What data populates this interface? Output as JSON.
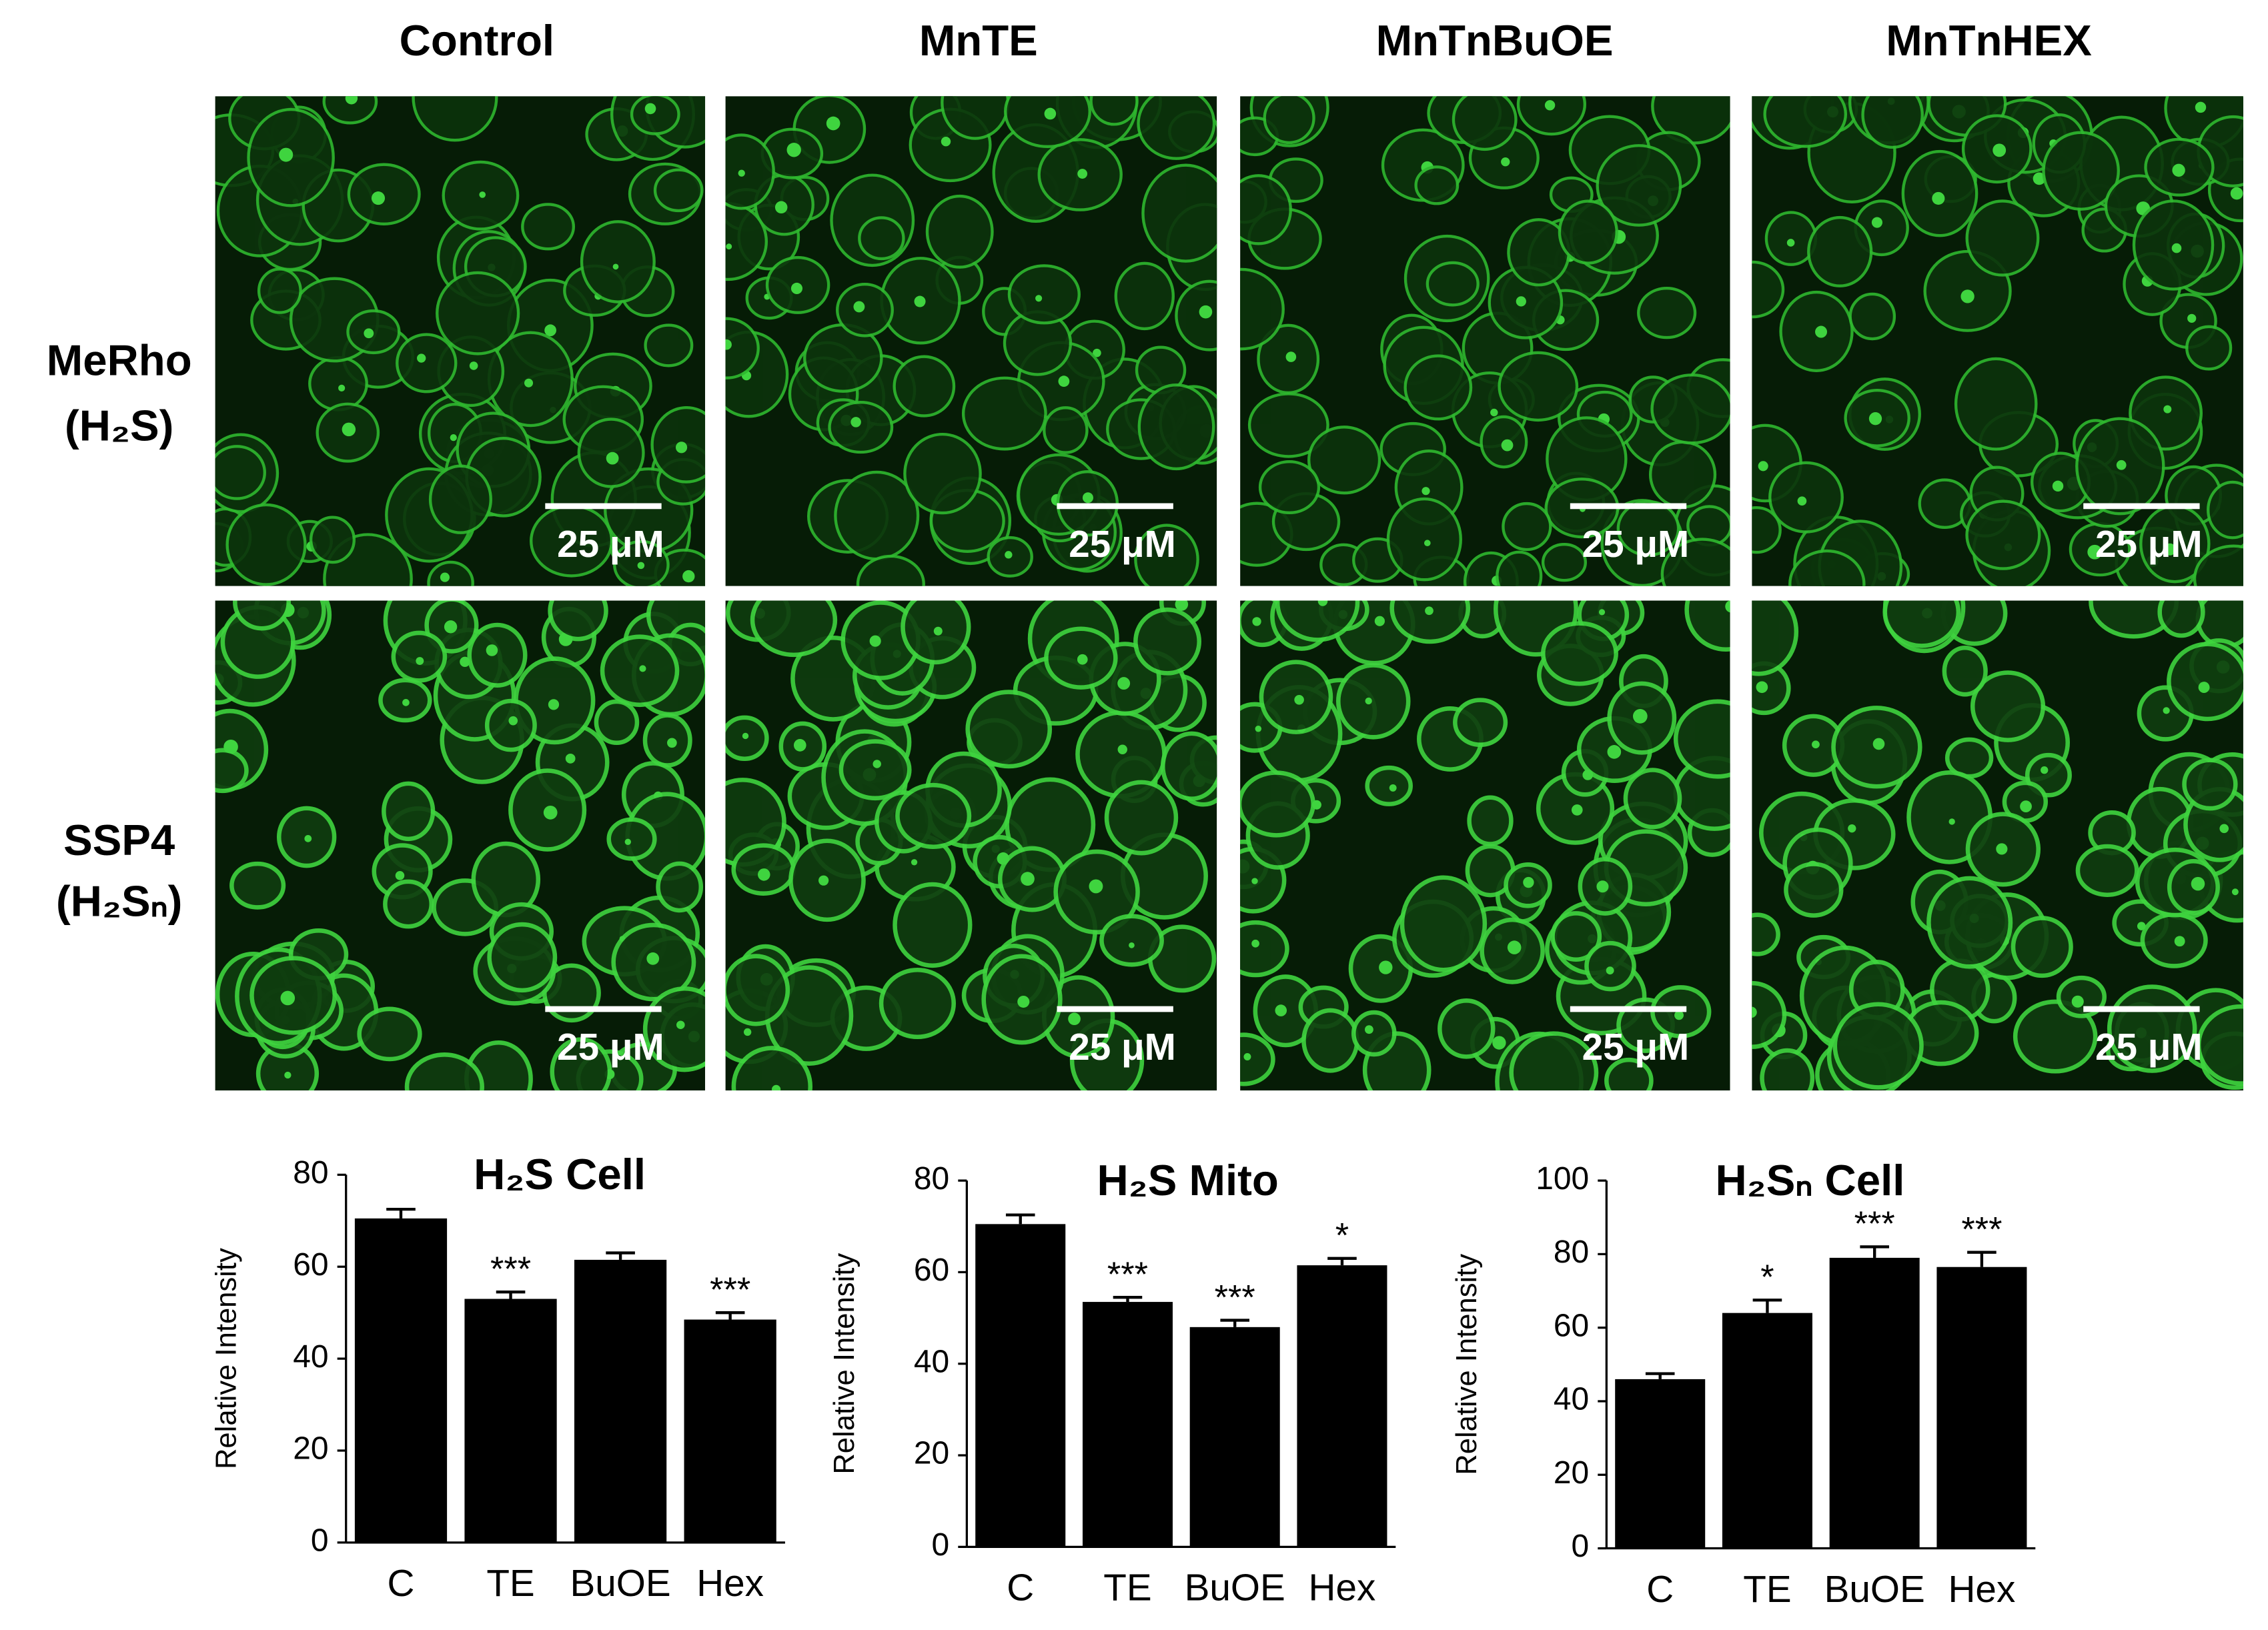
{
  "column_headers": [
    "Control",
    "MnTE",
    "MnTnBuOE",
    "MnTnHEX"
  ],
  "rows": [
    {
      "label": [
        "MeRho",
        "(H₂S)"
      ],
      "scale_bars": [
        "25 μM",
        "25 μM",
        "25 μM",
        "25 μM"
      ]
    },
    {
      "label": [
        "SSP4",
        "(H₂Sₙ)"
      ],
      "scale_bars": [
        "25 μM",
        "25 μM",
        "25 μM",
        "25 μM"
      ]
    }
  ],
  "chart_data": [
    {
      "type": "bar",
      "title": "H₂S Cell",
      "y_label": "Relative Intensity",
      "categories": [
        "C",
        "TE",
        "BuOE",
        "Hex"
      ],
      "values": [
        70.5,
        53,
        61.5,
        48.5
      ],
      "errors": [
        2,
        1.5,
        1.5,
        1.5
      ],
      "annotations": [
        null,
        "***",
        null,
        "***"
      ],
      "color": "#000000",
      "ylim": [
        0,
        80
      ],
      "yticks": [
        0,
        20,
        40,
        60,
        80
      ]
    },
    {
      "type": "bar",
      "title": "H₂S Mito",
      "y_label": "Relative Intensity",
      "categories": [
        "C",
        "TE",
        "BuOE",
        "Hex"
      ],
      "values": [
        70.5,
        53.5,
        48,
        61.5
      ],
      "errors": [
        2,
        1,
        1.5,
        1.5
      ],
      "annotations": [
        null,
        "***",
        "***",
        "*"
      ],
      "color": "#000000",
      "ylim": [
        0,
        80
      ],
      "yticks": [
        0,
        20,
        40,
        60,
        80
      ]
    },
    {
      "type": "bar",
      "title": "H₂Sₙ Cell",
      "y_label": "Relative Intensity",
      "categories": [
        "C",
        "TE",
        "BuOE",
        "Hex"
      ],
      "values": [
        46,
        64,
        79,
        76.5
      ],
      "errors": [
        1.5,
        3.5,
        3,
        4
      ],
      "annotations": [
        null,
        "*",
        "***",
        "***"
      ],
      "color": "#000000",
      "ylim": [
        0,
        100
      ],
      "yticks": [
        0,
        20,
        40,
        60,
        80,
        100
      ]
    }
  ]
}
